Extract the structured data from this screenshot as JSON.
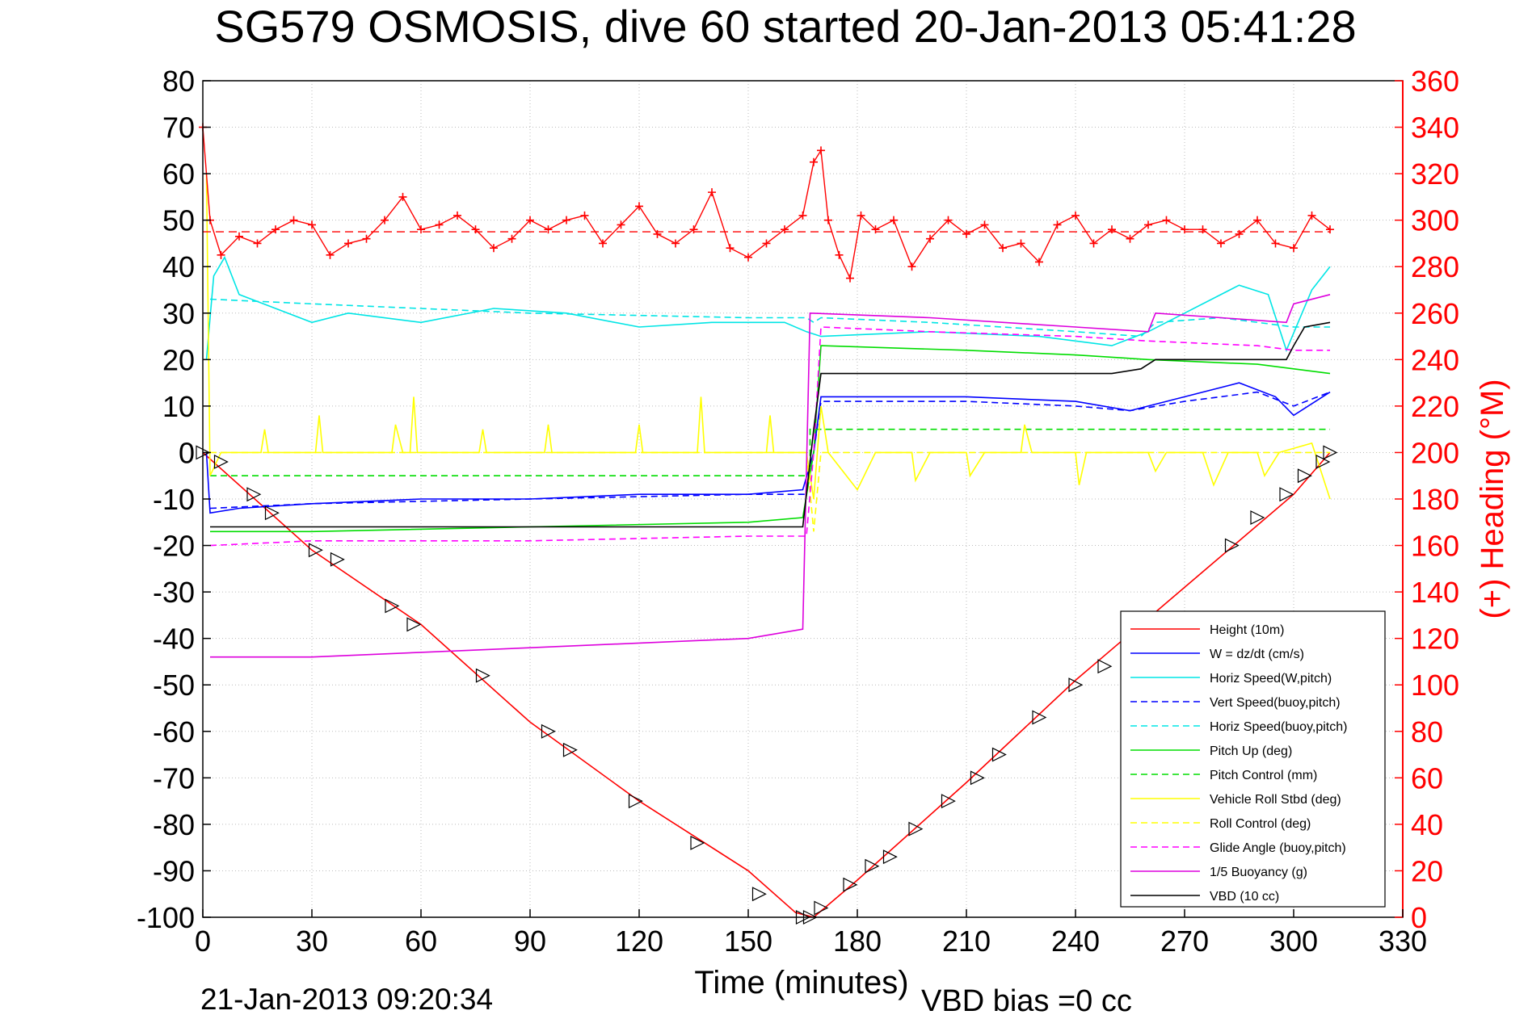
{
  "chart_data": {
    "type": "line",
    "title": "SG579 OSMOSIS, dive 60 started 20-Jan-2013 05:41:28",
    "xlabel": "Time (minutes)",
    "ylabel_right": "(+) Heading (°M)",
    "footer_left": "21-Jan-2013 09:20:34",
    "footer_right": "VBD bias =0 cc",
    "xlim": [
      0,
      330
    ],
    "ylim": [
      -100,
      80
    ],
    "ylim_right": [
      0,
      360
    ],
    "grid": true,
    "legend_position": "bottom-right",
    "x_ticks": [
      0,
      30,
      60,
      90,
      120,
      150,
      180,
      210,
      240,
      270,
      300,
      330
    ],
    "y_ticks": [
      80,
      70,
      60,
      50,
      40,
      30,
      20,
      10,
      0,
      -10,
      -20,
      -30,
      -40,
      -50,
      -60,
      -70,
      -80,
      -90,
      -100
    ],
    "y_ticks_right": [
      360,
      340,
      320,
      300,
      280,
      260,
      240,
      220,
      200,
      180,
      160,
      140,
      120,
      100,
      80,
      60,
      40,
      20,
      0
    ],
    "colors": {
      "heading": "#ff0000",
      "axes": "#000000",
      "right_axis": "#ff0000"
    },
    "series": [
      {
        "name": "Height (10m)",
        "color": "#ff0000",
        "dash": "solid",
        "points": [
          [
            0,
            0
          ],
          [
            30,
            -21
          ],
          [
            60,
            -37
          ],
          [
            90,
            -58
          ],
          [
            120,
            -75
          ],
          [
            150,
            -90
          ],
          [
            163,
            -99
          ],
          [
            168,
            -100
          ],
          [
            180,
            -92
          ],
          [
            210,
            -71
          ],
          [
            240,
            -49
          ],
          [
            270,
            -29
          ],
          [
            300,
            -9
          ],
          [
            310,
            0
          ]
        ]
      },
      {
        "name": "W = dz/dt (cm/s)",
        "color": "#0000ff",
        "dash": "solid",
        "points": [
          [
            1,
            0
          ],
          [
            2,
            -13
          ],
          [
            10,
            -12
          ],
          [
            30,
            -11
          ],
          [
            60,
            -10
          ],
          [
            90,
            -10
          ],
          [
            120,
            -9
          ],
          [
            150,
            -9
          ],
          [
            165,
            -8
          ],
          [
            168,
            0
          ],
          [
            170,
            12
          ],
          [
            180,
            12
          ],
          [
            210,
            12
          ],
          [
            240,
            11
          ],
          [
            255,
            9
          ],
          [
            270,
            12
          ],
          [
            285,
            15
          ],
          [
            295,
            12
          ],
          [
            300,
            8
          ],
          [
            310,
            13
          ]
        ]
      },
      {
        "name": "Horiz Speed(W,pitch)",
        "color": "#00e5e5",
        "dash": "solid",
        "points": [
          [
            1,
            20
          ],
          [
            3,
            38
          ],
          [
            6,
            42
          ],
          [
            10,
            34
          ],
          [
            20,
            31
          ],
          [
            30,
            28
          ],
          [
            40,
            30
          ],
          [
            60,
            28
          ],
          [
            80,
            31
          ],
          [
            100,
            30
          ],
          [
            120,
            27
          ],
          [
            140,
            28
          ],
          [
            160,
            28
          ],
          [
            166,
            26
          ],
          [
            170,
            25
          ],
          [
            200,
            26
          ],
          [
            230,
            25
          ],
          [
            250,
            23
          ],
          [
            260,
            26
          ],
          [
            270,
            30
          ],
          [
            285,
            36
          ],
          [
            293,
            34
          ],
          [
            298,
            22
          ],
          [
            305,
            35
          ],
          [
            310,
            40
          ]
        ]
      },
      {
        "name": "Vert Speed(buoy,pitch)",
        "color": "#0000ff",
        "dash": "dashed",
        "points": [
          [
            2,
            -12
          ],
          [
            30,
            -11
          ],
          [
            90,
            -10
          ],
          [
            150,
            -9
          ],
          [
            166,
            -9
          ],
          [
            168,
            0
          ],
          [
            170,
            11
          ],
          [
            210,
            11
          ],
          [
            240,
            10
          ],
          [
            255,
            9
          ],
          [
            270,
            11
          ],
          [
            290,
            13
          ],
          [
            300,
            10
          ],
          [
            310,
            13
          ]
        ]
      },
      {
        "name": "Horiz Speed(buoy,pitch)",
        "color": "#00e5e5",
        "dash": "dashed",
        "points": [
          [
            2,
            33
          ],
          [
            30,
            32
          ],
          [
            90,
            30
          ],
          [
            150,
            29
          ],
          [
            166,
            29
          ],
          [
            168,
            28
          ],
          [
            170,
            29
          ],
          [
            200,
            28
          ],
          [
            240,
            26
          ],
          [
            258,
            25
          ],
          [
            262,
            28
          ],
          [
            280,
            29
          ],
          [
            300,
            27
          ],
          [
            310,
            27
          ]
        ]
      },
      {
        "name": "Pitch Up (deg)",
        "color": "#00dd00",
        "dash": "solid",
        "points": [
          [
            2,
            -17
          ],
          [
            30,
            -17
          ],
          [
            90,
            -16
          ],
          [
            150,
            -15
          ],
          [
            165,
            -14
          ],
          [
            168,
            0
          ],
          [
            170,
            23
          ],
          [
            210,
            22
          ],
          [
            240,
            21
          ],
          [
            260,
            20
          ],
          [
            290,
            19
          ],
          [
            300,
            18
          ],
          [
            310,
            17
          ]
        ]
      },
      {
        "name": "Pitch Control (mm)",
        "color": "#00dd00",
        "dash": "dashed",
        "points": [
          [
            2,
            -5
          ],
          [
            165,
            -5
          ],
          [
            167,
            -5
          ],
          [
            167,
            5
          ],
          [
            310,
            5
          ]
        ]
      },
      {
        "name": "Vehicle Roll Stbd (deg)",
        "color": "#ffff00",
        "dash": "solid",
        "points": [
          [
            1,
            60
          ],
          [
            2,
            -5
          ],
          [
            5,
            0
          ],
          [
            16,
            0
          ],
          [
            17,
            5
          ],
          [
            18,
            0
          ],
          [
            31,
            0
          ],
          [
            32,
            8
          ],
          [
            33,
            0
          ],
          [
            52,
            0
          ],
          [
            53,
            6
          ],
          [
            55,
            0
          ],
          [
            57,
            0
          ],
          [
            58,
            12
          ],
          [
            59,
            0
          ],
          [
            76,
            0
          ],
          [
            77,
            5
          ],
          [
            78,
            0
          ],
          [
            94,
            0
          ],
          [
            95,
            6
          ],
          [
            96,
            0
          ],
          [
            119,
            0
          ],
          [
            120,
            6
          ],
          [
            121,
            0
          ],
          [
            136,
            0
          ],
          [
            137,
            12
          ],
          [
            138,
            0
          ],
          [
            155,
            0
          ],
          [
            156,
            8
          ],
          [
            157,
            0
          ],
          [
            166,
            0
          ],
          [
            168,
            -10
          ],
          [
            170,
            10
          ],
          [
            172,
            0
          ],
          [
            180,
            -8
          ],
          [
            185,
            0
          ],
          [
            195,
            0
          ],
          [
            196,
            -6
          ],
          [
            200,
            0
          ],
          [
            210,
            0
          ],
          [
            211,
            -5
          ],
          [
            215,
            0
          ],
          [
            225,
            0
          ],
          [
            226,
            6
          ],
          [
            228,
            0
          ],
          [
            240,
            0
          ],
          [
            241,
            -7
          ],
          [
            243,
            0
          ],
          [
            260,
            0
          ],
          [
            262,
            -4
          ],
          [
            265,
            0
          ],
          [
            275,
            0
          ],
          [
            278,
            -7
          ],
          [
            282,
            0
          ],
          [
            290,
            0
          ],
          [
            292,
            -5
          ],
          [
            296,
            0
          ],
          [
            305,
            2
          ],
          [
            310,
            -10
          ]
        ]
      },
      {
        "name": "Roll Control (deg)",
        "color": "#ffff00",
        "dash": "dashed",
        "points": [
          [
            2,
            0
          ],
          [
            166,
            0
          ],
          [
            168,
            -17
          ],
          [
            170,
            0
          ],
          [
            310,
            0
          ]
        ]
      },
      {
        "name": "Glide Angle (buoy,pitch)",
        "color": "#ff00ff",
        "dash": "dashed",
        "points": [
          [
            2,
            -20
          ],
          [
            30,
            -19
          ],
          [
            90,
            -19
          ],
          [
            150,
            -18
          ],
          [
            166,
            -18
          ],
          [
            168,
            0
          ],
          [
            170,
            27
          ],
          [
            200,
            26
          ],
          [
            240,
            25
          ],
          [
            260,
            24
          ],
          [
            290,
            23
          ],
          [
            300,
            22
          ],
          [
            310,
            22
          ]
        ]
      },
      {
        "name": "1/5 Buoyancy (g)",
        "color": "#dd00dd",
        "dash": "solid",
        "points": [
          [
            2,
            -44
          ],
          [
            30,
            -44
          ],
          [
            60,
            -43
          ],
          [
            90,
            -42
          ],
          [
            120,
            -41
          ],
          [
            150,
            -40
          ],
          [
            165,
            -38
          ],
          [
            167,
            30
          ],
          [
            200,
            29
          ],
          [
            240,
            27
          ],
          [
            260,
            26
          ],
          [
            262,
            30
          ],
          [
            280,
            29
          ],
          [
            298,
            28
          ],
          [
            300,
            32
          ],
          [
            310,
            34
          ]
        ]
      },
      {
        "name": "VBD (10 cc)",
        "color": "#000000",
        "dash": "solid",
        "points": [
          [
            2,
            -16
          ],
          [
            165,
            -16
          ],
          [
            168,
            5
          ],
          [
            170,
            17
          ],
          [
            250,
            17
          ],
          [
            258,
            18
          ],
          [
            262,
            20
          ],
          [
            298,
            20
          ],
          [
            300,
            23
          ],
          [
            303,
            27
          ],
          [
            310,
            28
          ]
        ]
      }
    ],
    "heading_series": {
      "name": "Heading",
      "color": "#ff0000",
      "marker": "+",
      "target": 295,
      "points": [
        [
          0,
          340
        ],
        [
          2,
          300
        ],
        [
          5,
          285
        ],
        [
          10,
          293
        ],
        [
          15,
          290
        ],
        [
          20,
          296
        ],
        [
          25,
          300
        ],
        [
          30,
          298
        ],
        [
          35,
          285
        ],
        [
          40,
          290
        ],
        [
          45,
          292
        ],
        [
          50,
          300
        ],
        [
          55,
          310
        ],
        [
          60,
          296
        ],
        [
          65,
          298
        ],
        [
          70,
          302
        ],
        [
          75,
          296
        ],
        [
          80,
          288
        ],
        [
          85,
          292
        ],
        [
          90,
          300
        ],
        [
          95,
          296
        ],
        [
          100,
          300
        ],
        [
          105,
          302
        ],
        [
          110,
          290
        ],
        [
          115,
          298
        ],
        [
          120,
          306
        ],
        [
          125,
          294
        ],
        [
          130,
          290
        ],
        [
          135,
          296
        ],
        [
          140,
          312
        ],
        [
          145,
          288
        ],
        [
          150,
          284
        ],
        [
          155,
          290
        ],
        [
          160,
          296
        ],
        [
          165,
          302
        ],
        [
          168,
          325
        ],
        [
          170,
          330
        ],
        [
          172,
          300
        ],
        [
          175,
          285
        ],
        [
          178,
          275
        ],
        [
          181,
          302
        ],
        [
          185,
          296
        ],
        [
          190,
          300
        ],
        [
          195,
          280
        ],
        [
          200,
          292
        ],
        [
          205,
          300
        ],
        [
          210,
          294
        ],
        [
          215,
          298
        ],
        [
          220,
          288
        ],
        [
          225,
          290
        ],
        [
          230,
          282
        ],
        [
          235,
          298
        ],
        [
          240,
          302
        ],
        [
          245,
          290
        ],
        [
          250,
          296
        ],
        [
          255,
          292
        ],
        [
          260,
          298
        ],
        [
          265,
          300
        ],
        [
          270,
          296
        ],
        [
          275,
          296
        ],
        [
          280,
          290
        ],
        [
          285,
          294
        ],
        [
          290,
          300
        ],
        [
          295,
          290
        ],
        [
          300,
          288
        ],
        [
          305,
          302
        ],
        [
          310,
          296
        ]
      ]
    },
    "dive_markers": [
      [
        0,
        0
      ],
      [
        5,
        -2
      ],
      [
        14,
        -9
      ],
      [
        19,
        -13
      ],
      [
        31,
        -21
      ],
      [
        37,
        -23
      ],
      [
        52,
        -33
      ],
      [
        58,
        -37
      ],
      [
        77,
        -48
      ],
      [
        95,
        -60
      ],
      [
        101,
        -64
      ],
      [
        119,
        -75
      ],
      [
        136,
        -84
      ],
      [
        153,
        -95
      ],
      [
        165,
        -100
      ],
      [
        167,
        -100
      ],
      [
        170,
        -98
      ],
      [
        178,
        -93
      ],
      [
        184,
        -89
      ],
      [
        189,
        -87
      ],
      [
        196,
        -81
      ],
      [
        205,
        -75
      ],
      [
        213,
        -70
      ],
      [
        219,
        -65
      ],
      [
        230,
        -57
      ],
      [
        240,
        -50
      ],
      [
        248,
        -46
      ],
      [
        257,
        -42
      ],
      [
        283,
        -20
      ],
      [
        290,
        -14
      ],
      [
        298,
        -9
      ],
      [
        303,
        -5
      ],
      [
        308,
        -2
      ],
      [
        310,
        0
      ]
    ]
  }
}
